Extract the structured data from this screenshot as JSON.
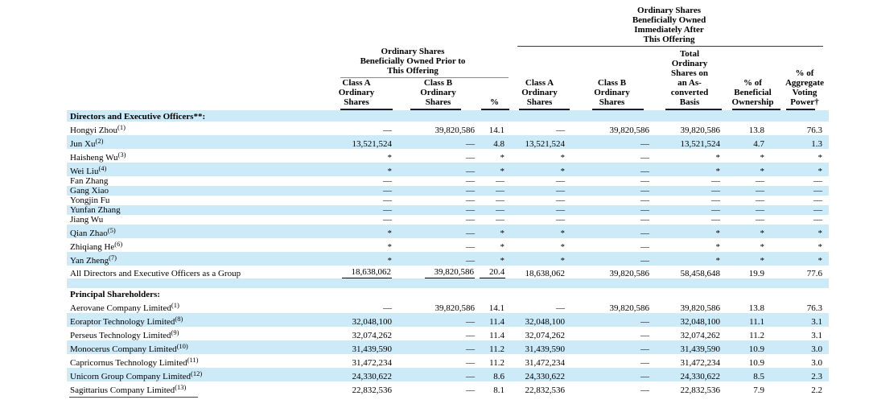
{
  "colors": {
    "row_shade": "#cdeaf8",
    "text": "#000000"
  },
  "header": {
    "prior_group": "Ordinary Shares\nBeneficially Owned Prior to\nThis Offering",
    "after_group": "Ordinary Shares\nBeneficially Owned\nImmediately After\nThis Offering",
    "col_class_a_prior": "Class A\nOrdinary\nShares",
    "col_class_b_prior": "Class B\nOrdinary\nShares",
    "col_pct_prior": "%",
    "col_class_a_after": "Class A\nOrdinary\nShares",
    "col_class_b_after": "Class B\nOrdinary\nShares",
    "col_total": "Total\nOrdinary\nShares on\nan As-\nconverted\nBasis",
    "col_pct_beneficial": "% of\nBeneficial\nOwnership",
    "col_pct_voting": "% of\nAggregate\nVoting\nPower†"
  },
  "table": {
    "rows": [
      {
        "type": "section",
        "name": "Directors and Executive Officers**:",
        "shade": true
      },
      {
        "type": "sup",
        "name": "Hongyi Zhou",
        "sup": "(1)",
        "shade": false,
        "values": [
          "—",
          "39,820,586",
          "14.1",
          "—",
          "39,820,586",
          "39,820,586",
          "13.8",
          "76.3"
        ]
      },
      {
        "type": "sup",
        "name": "Jun Xu",
        "sup": "(2)",
        "shade": true,
        "values": [
          "13,521,524",
          "—",
          "4.8",
          "13,521,524",
          "—",
          "13,521,524",
          "4.7",
          "1.3"
        ]
      },
      {
        "type": "sup",
        "name": "Haisheng Wu",
        "sup": "(3)",
        "shade": false,
        "values": [
          "*",
          "—",
          "*",
          "*",
          "—",
          "*",
          "*",
          "*"
        ]
      },
      {
        "type": "sup",
        "name": "Wei Liu",
        "sup": "(4)",
        "shade": true,
        "values": [
          "*",
          "—",
          "*",
          "*",
          "—",
          "*",
          "*",
          "*"
        ]
      },
      {
        "type": "plain",
        "name": "Fan Zhang",
        "shade": false,
        "values": [
          "—",
          "—",
          "—",
          "—",
          "—",
          "—",
          "—",
          "—"
        ]
      },
      {
        "type": "plain",
        "name": "Gang Xiao",
        "shade": true,
        "values": [
          "—",
          "—",
          "—",
          "—",
          "—",
          "—",
          "—",
          "—"
        ]
      },
      {
        "type": "plain",
        "name": "Yongjin Fu",
        "shade": false,
        "values": [
          "—",
          "—",
          "—",
          "—",
          "—",
          "—",
          "—",
          "—"
        ]
      },
      {
        "type": "plain",
        "name": "Yunfan Zhang",
        "shade": true,
        "values": [
          "—",
          "—",
          "—",
          "—",
          "—",
          "—",
          "—",
          "—"
        ]
      },
      {
        "type": "plain",
        "name": "Jiang Wu",
        "shade": false,
        "values": [
          "—",
          "—",
          "—",
          "—",
          "—",
          "—",
          "—",
          "—"
        ]
      },
      {
        "type": "sup",
        "name": "Qian Zhao",
        "sup": "(5)",
        "shade": true,
        "values": [
          "*",
          "—",
          "*",
          "*",
          "—",
          "*",
          "*",
          "*"
        ]
      },
      {
        "type": "sup",
        "name": "Zhiqiang He",
        "sup": "(6)",
        "shade": false,
        "values": [
          "*",
          "—",
          "*",
          "*",
          "—",
          "*",
          "*",
          "*"
        ]
      },
      {
        "type": "sup",
        "name": "Yan Zheng",
        "sup": "(7)",
        "shade": true,
        "values": [
          "*",
          "—",
          "*",
          "*",
          "—",
          "*",
          "*",
          "*"
        ]
      },
      {
        "type": "group",
        "name": "All Directors and Executive Officers as a Group",
        "shade": false,
        "u3": true,
        "values": [
          "18,638,062",
          "39,820,586",
          "20.4",
          "18,638,062",
          "39,820,586",
          "58,458,648",
          "19.9",
          "77.6"
        ]
      },
      {
        "type": "spacer",
        "shade": true
      },
      {
        "type": "section",
        "name": "Principal Shareholders:",
        "shade": false
      },
      {
        "type": "sup",
        "name": "Aerovane Company Limited",
        "sup": "(1)",
        "shade": false,
        "values": [
          "—",
          "39,820,586",
          "14.1",
          "—",
          "39,820,586",
          "39,820,586",
          "13.8",
          "76.3"
        ]
      },
      {
        "type": "sup",
        "name": "Eoraptor Technology Limited",
        "sup": "(8)",
        "shade": true,
        "values": [
          "32,048,100",
          "—",
          "11.4",
          "32,048,100",
          "—",
          "32,048,100",
          "11.1",
          "3.1"
        ]
      },
      {
        "type": "sup",
        "name": "Perseus Technology Limited",
        "sup": "(9)",
        "shade": false,
        "values": [
          "32,074,262",
          "—",
          "11.4",
          "32,074,262",
          "—",
          "32,074,262",
          "11.2",
          "3.1"
        ]
      },
      {
        "type": "sup",
        "name": "Monocerus Company Limited",
        "sup": "(10)",
        "shade": true,
        "values": [
          "31,439,590",
          "—",
          "11.2",
          "31,439,590",
          "—",
          "31,439,590",
          "10.9",
          "3.0"
        ]
      },
      {
        "type": "sup",
        "name": "Capricornus Technology Limited",
        "sup": "(11)",
        "shade": false,
        "values": [
          "31,472,234",
          "—",
          "11.2",
          "31,472,234",
          "—",
          "31,472,234",
          "10.9",
          "3.0"
        ]
      },
      {
        "type": "sup",
        "name": "Unicorn Group Company Limited",
        "sup": "(12)",
        "shade": true,
        "values": [
          "24,330,622",
          "—",
          "8.6",
          "24,330,622",
          "—",
          "24,330,622",
          "8.5",
          "2.3"
        ]
      },
      {
        "type": "sup",
        "name": "Sagittarius Company Limited",
        "sup": "(13)",
        "shade": false,
        "values": [
          "22,832,536",
          "—",
          "8.1",
          "22,832,536",
          "—",
          "22,832,536",
          "7.9",
          "2.2"
        ]
      }
    ]
  }
}
